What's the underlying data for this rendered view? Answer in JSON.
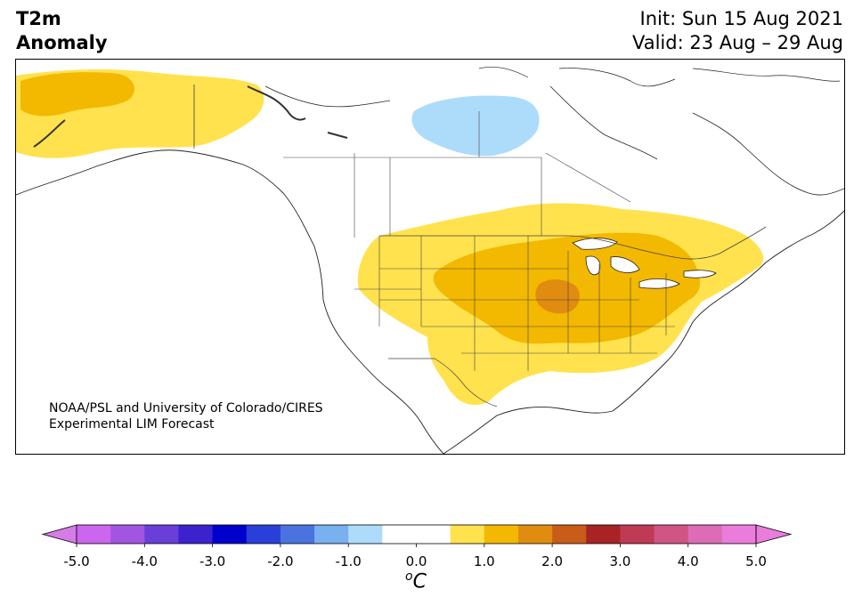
{
  "title": {
    "line1": "T2m",
    "line2": "Anomaly"
  },
  "forecast": {
    "init": "Init: Sun 15 Aug 2021",
    "valid": "Valid: 23 Aug – 29 Aug"
  },
  "credit": {
    "line1": "NOAA/PSL and University of Colorado/CIRES",
    "line2": "Experimental LIM Forecast"
  },
  "colorbar": {
    "ticks": [
      "-5.0",
      "-4.0",
      "-3.0",
      "-2.0",
      "-1.0",
      "0.0",
      "1.0",
      "2.0",
      "3.0",
      "4.0",
      "5.0"
    ],
    "unit_prefix": "o",
    "unit_letter": "C",
    "colors": [
      "#cc66ee",
      "#a255e0",
      "#6a3fd8",
      "#3b22cc",
      "#0000cc",
      "#2a3ed8",
      "#4a73e0",
      "#78b0f0",
      "#acdcfa",
      "#ffffff",
      "#ffffff",
      "#ffe24d",
      "#f3b800",
      "#e08c10",
      "#c95c18",
      "#a82424",
      "#bf3a55",
      "#d05585",
      "#dc6cb5",
      "#ea7cdc"
    ],
    "under_color": "#d57ce8",
    "over_color": "#ea7cdc"
  }
}
